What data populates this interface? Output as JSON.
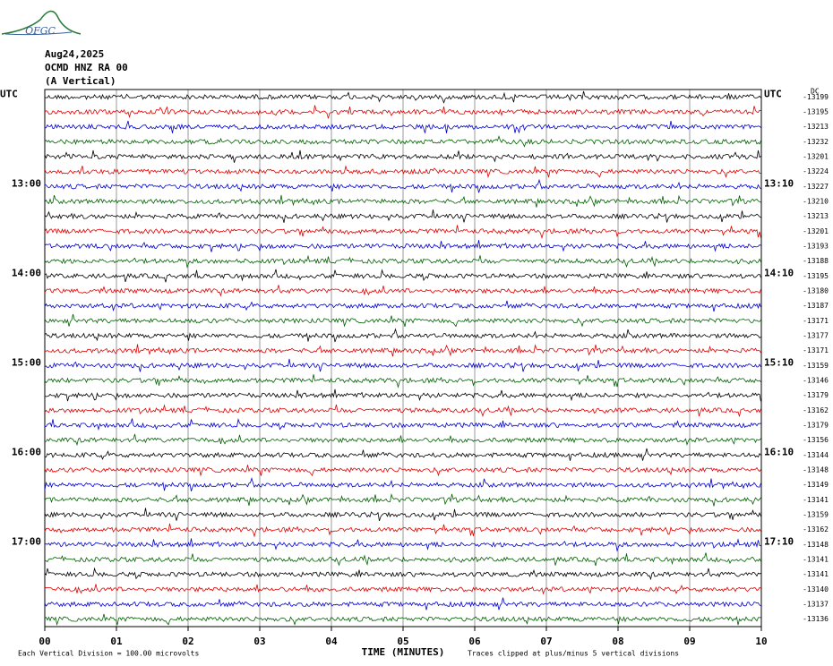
{
  "logo": "OFGC",
  "header": {
    "date": "Aug24,2025",
    "station": "OCMD HNZ RA 00",
    "component": "(A Vertical)"
  },
  "left_labels": [
    "UTC",
    "13:00",
    "14:00",
    "15:00",
    "16:00",
    "17:00"
  ],
  "right_labels": [
    "UTC",
    "13:10",
    "14:10",
    "15:10",
    "16:10",
    "17:10"
  ],
  "dc_label": "DC",
  "trace_offsets": [
    "-13199",
    "-13195",
    "-13213",
    "-13232",
    "-13201",
    "-13224",
    "-13227",
    "-13210",
    "-13213",
    "-13201",
    "-13193",
    "-13188",
    "-13195",
    "-13180",
    "-13187",
    "-13171",
    "-13177",
    "-13171",
    "-13159",
    "-13146",
    "-13179",
    "-13162",
    "-13179",
    "-13156",
    "-13144",
    "-13148",
    "-13149",
    "-13141",
    "-13159",
    "-13162",
    "-13148",
    "-13141",
    "-13141",
    "-13140",
    "-13137",
    "-13136"
  ],
  "x_ticks": [
    "00",
    "01",
    "02",
    "03",
    "04",
    "05",
    "06",
    "07",
    "08",
    "09",
    "10"
  ],
  "x_title": "TIME (MINUTES)",
  "footer_left": "Each Vertical Division =  100.00 microvolts",
  "footer_right": "Traces clipped at plus/minus 5 vertical divisions"
}
